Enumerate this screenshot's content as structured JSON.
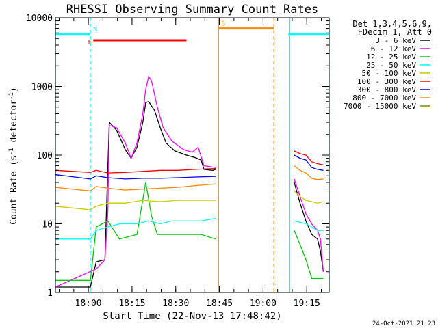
{
  "chart_data": {
    "type": "line",
    "title": "RHESSI Observing Summary Count Rates",
    "xlabel": "Start Time (22-Nov-13 17:48:42)",
    "ylabel_main": "Count Rate (s",
    "ylabel_sup1": "-1",
    "ylabel_mid": " detector",
    "ylabel_sup2": "-1",
    "ylabel_end": ")",
    "x_units": "minutes after 17:48:42",
    "xlim": [
      0,
      94
    ],
    "ylim": [
      1,
      10000
    ],
    "yscale": "log",
    "x_ticks": [
      {
        "t": 11.3,
        "label": "18:00"
      },
      {
        "t": 26.3,
        "label": "18:15"
      },
      {
        "t": 41.3,
        "label": "18:30"
      },
      {
        "t": 56.3,
        "label": "18:45"
      },
      {
        "t": 71.3,
        "label": "19:00"
      },
      {
        "t": 86.3,
        "label": "19:15"
      }
    ],
    "y_ticks": [
      {
        "v": 1,
        "label": "1"
      },
      {
        "v": 10,
        "label": "10"
      },
      {
        "v": 100,
        "label": "100"
      },
      {
        "v": 1000,
        "label": "1000"
      },
      {
        "v": 10000,
        "label": "10000"
      }
    ],
    "legend_position": "right",
    "legend_header": [
      "Det 1,3,4,5,6,9,",
      "FDecim 1, Att 0"
    ],
    "series": [
      {
        "name": "3 - 6 keV",
        "color": "#000000",
        "points": [
          [
            0,
            1.2
          ],
          [
            12,
            1.2
          ],
          [
            14,
            2.8
          ],
          [
            17,
            3
          ],
          [
            18.5,
            300
          ],
          [
            21,
            230
          ],
          [
            24,
            120
          ],
          [
            26,
            90
          ],
          [
            28,
            130
          ],
          [
            30,
            300
          ],
          [
            31,
            580
          ],
          [
            32,
            600
          ],
          [
            34,
            450
          ],
          [
            36,
            250
          ],
          [
            38,
            150
          ],
          [
            41,
            115
          ],
          [
            45,
            100
          ],
          [
            48,
            92
          ],
          [
            50,
            85
          ],
          [
            51,
            62
          ],
          [
            54,
            60
          ],
          [
            55,
            62
          ],
          [
            80,
            0
          ],
          [
            82,
            40
          ],
          [
            84,
            20
          ],
          [
            86,
            11
          ],
          [
            88,
            7
          ],
          [
            90,
            6
          ],
          [
            91,
            4
          ],
          [
            92,
            2
          ]
        ]
      },
      {
        "name": "6 - 12 keV",
        "color": "#ff00ff",
        "points": [
          [
            0,
            1.2
          ],
          [
            14,
            2.2
          ],
          [
            17,
            3
          ],
          [
            18,
            15
          ],
          [
            18.5,
            270
          ],
          [
            21,
            250
          ],
          [
            24,
            150
          ],
          [
            26,
            90
          ],
          [
            28,
            150
          ],
          [
            30,
            400
          ],
          [
            31,
            900
          ],
          [
            32,
            1400
          ],
          [
            33,
            1200
          ],
          [
            35,
            500
          ],
          [
            37,
            250
          ],
          [
            40,
            160
          ],
          [
            44,
            120
          ],
          [
            47,
            110
          ],
          [
            49,
            130
          ],
          [
            51,
            70
          ],
          [
            53,
            68
          ],
          [
            55,
            66
          ],
          [
            80,
            0
          ],
          [
            82,
            45
          ],
          [
            84,
            25
          ],
          [
            86,
            14
          ],
          [
            88,
            10
          ],
          [
            90,
            8
          ],
          [
            91,
            6
          ],
          [
            92,
            2
          ]
        ]
      },
      {
        "name": "12 - 25 keV",
        "color": "#00cc00",
        "points": [
          [
            0,
            1.5
          ],
          [
            12,
            1.5
          ],
          [
            14,
            9
          ],
          [
            18,
            11
          ],
          [
            22,
            6
          ],
          [
            28,
            7
          ],
          [
            31,
            40
          ],
          [
            33,
            13
          ],
          [
            35,
            7
          ],
          [
            40,
            7
          ],
          [
            45,
            7
          ],
          [
            50,
            7
          ],
          [
            55,
            6
          ],
          [
            80,
            0
          ],
          [
            82,
            8
          ],
          [
            84,
            5
          ],
          [
            86,
            3
          ],
          [
            88,
            1.6
          ],
          [
            92,
            1.6
          ]
        ]
      },
      {
        "name": "25 - 50 keV",
        "color": "#00ffff",
        "points": [
          [
            0,
            6
          ],
          [
            12,
            6
          ],
          [
            14,
            8
          ],
          [
            18,
            9
          ],
          [
            22,
            10
          ],
          [
            28,
            10
          ],
          [
            32,
            11
          ],
          [
            36,
            10
          ],
          [
            40,
            11
          ],
          [
            45,
            11
          ],
          [
            50,
            11
          ],
          [
            55,
            12
          ],
          [
            80,
            0
          ],
          [
            82,
            11
          ],
          [
            86,
            10
          ],
          [
            88,
            9
          ],
          [
            90,
            8
          ],
          [
            92,
            8
          ]
        ]
      },
      {
        "name": "50 - 100 keV",
        "color": "#cccc00",
        "points": [
          [
            0,
            18
          ],
          [
            12,
            16
          ],
          [
            14,
            18
          ],
          [
            18,
            20
          ],
          [
            24,
            20
          ],
          [
            30,
            22
          ],
          [
            36,
            21
          ],
          [
            42,
            22
          ],
          [
            48,
            22
          ],
          [
            55,
            22
          ],
          [
            80,
            0
          ],
          [
            82,
            30
          ],
          [
            84,
            25
          ],
          [
            86,
            22
          ],
          [
            88,
            21
          ],
          [
            90,
            20
          ],
          [
            92,
            21
          ]
        ]
      },
      {
        "name": "100 - 300 keV",
        "color": "#ff0000",
        "points": [
          [
            0,
            60
          ],
          [
            12,
            56
          ],
          [
            14,
            60
          ],
          [
            18,
            55
          ],
          [
            24,
            56
          ],
          [
            30,
            58
          ],
          [
            36,
            60
          ],
          [
            42,
            60
          ],
          [
            48,
            62
          ],
          [
            55,
            64
          ],
          [
            80,
            0
          ],
          [
            82,
            115
          ],
          [
            84,
            105
          ],
          [
            86,
            100
          ],
          [
            88,
            80
          ],
          [
            90,
            75
          ],
          [
            92,
            72
          ]
        ]
      },
      {
        "name": "300 - 800 keV",
        "color": "#0000ff",
        "points": [
          [
            0,
            52
          ],
          [
            12,
            45
          ],
          [
            14,
            50
          ],
          [
            18,
            47
          ],
          [
            24,
            45
          ],
          [
            30,
            46
          ],
          [
            36,
            46
          ],
          [
            42,
            47
          ],
          [
            48,
            48
          ],
          [
            55,
            49
          ],
          [
            80,
            0
          ],
          [
            82,
            100
          ],
          [
            84,
            90
          ],
          [
            86,
            85
          ],
          [
            88,
            66
          ],
          [
            90,
            62
          ],
          [
            92,
            60
          ]
        ]
      },
      {
        "name": "800 - 7000 keV",
        "color": "#ff8800",
        "points": [
          [
            0,
            34
          ],
          [
            12,
            30
          ],
          [
            14,
            35
          ],
          [
            18,
            33
          ],
          [
            24,
            31
          ],
          [
            30,
            32
          ],
          [
            36,
            33
          ],
          [
            42,
            34
          ],
          [
            48,
            36
          ],
          [
            55,
            38
          ],
          [
            80,
            0
          ],
          [
            82,
            70
          ],
          [
            84,
            60
          ],
          [
            86,
            55
          ],
          [
            88,
            46
          ],
          [
            90,
            44
          ],
          [
            92,
            45
          ]
        ]
      },
      {
        "name": "7000 - 15000 keV",
        "color": "#888800",
        "points": []
      }
    ],
    "bars": [
      {
        "label": "",
        "color": "#00ffff",
        "x0": 0,
        "x1": 12.0,
        "y": 5800
      },
      {
        "label": "N",
        "color": "#00ffff",
        "x0": 12.0,
        "x1": 12.0,
        "y": 5800
      },
      {
        "label": "F",
        "color": "#ff0000",
        "x0": 13.0,
        "x1": 45,
        "y": 4700
      },
      {
        "label": "S",
        "color": "#ff8800",
        "x0": 56.0,
        "x1": 75.0,
        "y": 7000
      },
      {
        "label": "",
        "color": "#00ffff",
        "x0": 80,
        "x1": 94,
        "y": 5800
      }
    ],
    "vlines": [
      {
        "t": 0,
        "color": "#00ffff",
        "dashed": false
      },
      {
        "t": 12.0,
        "color": "#00ffff",
        "dashed": true
      },
      {
        "t": 56.0,
        "color": "#ff8800",
        "dashed": false
      },
      {
        "t": 75.0,
        "color": "#ff8800",
        "dashed": true
      },
      {
        "t": 80.5,
        "color": "#00ffff",
        "dashed": false
      },
      {
        "t": 94,
        "color": "#00ffff",
        "dashed": true
      }
    ],
    "footer_date": "24-Oct-2021 21:23"
  }
}
